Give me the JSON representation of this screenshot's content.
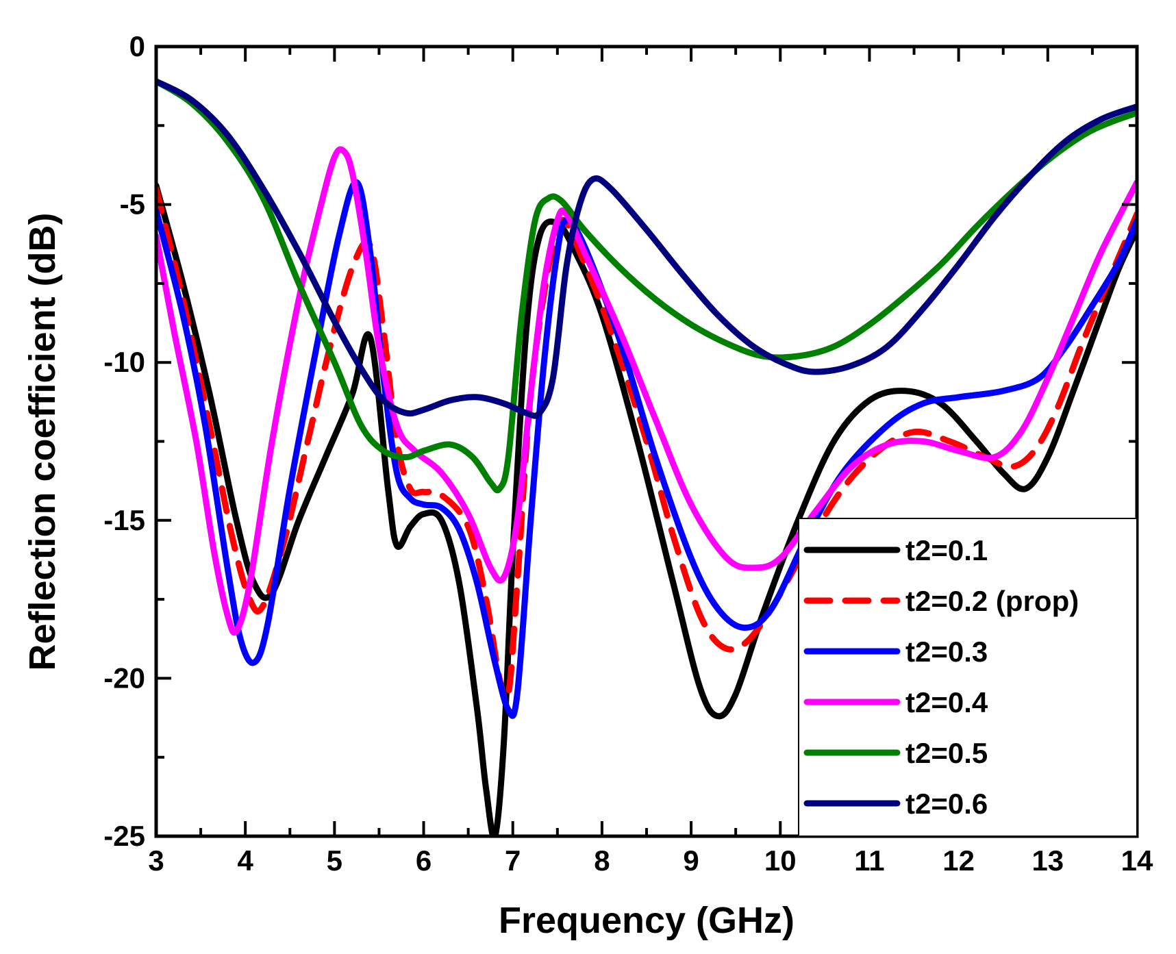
{
  "chart_data": {
    "type": "line",
    "title": "",
    "xlabel": "Frequency (GHz)",
    "ylabel": "Reflection coefficient (dB)",
    "xlim": [
      3,
      14
    ],
    "ylim": [
      -25,
      0
    ],
    "xticks": [
      "3",
      "4",
      "5",
      "6",
      "7",
      "8",
      "9",
      "10",
      "11",
      "12",
      "13",
      "14"
    ],
    "yticks": [
      "0",
      "-5",
      "-10",
      "-15",
      "-20",
      "-25"
    ],
    "xtick_values": [
      3,
      4,
      5,
      6,
      7,
      8,
      9,
      10,
      11,
      12,
      13,
      14
    ],
    "ytick_values": [
      0,
      -5,
      -10,
      -15,
      -20,
      -25
    ],
    "grid": false,
    "legend_position": "lower-right",
    "series": [
      {
        "name": "t2=0.1",
        "color": "#000000",
        "dash": "solid",
        "points": [
          [
            3,
            -4.4
          ],
          [
            3.3,
            -7.5
          ],
          [
            3.6,
            -11
          ],
          [
            3.9,
            -15
          ],
          [
            4.1,
            -17
          ],
          [
            4.3,
            -17.3
          ],
          [
            4.6,
            -15
          ],
          [
            4.9,
            -13
          ],
          [
            5.2,
            -11
          ],
          [
            5.4,
            -9.2
          ],
          [
            5.6,
            -14
          ],
          [
            5.7,
            -15.8
          ],
          [
            5.85,
            -15.2
          ],
          [
            6.0,
            -14.8
          ],
          [
            6.2,
            -15
          ],
          [
            6.4,
            -17
          ],
          [
            6.6,
            -21
          ],
          [
            6.7,
            -23.5
          ],
          [
            6.8,
            -25
          ],
          [
            6.9,
            -22
          ],
          [
            7.0,
            -16
          ],
          [
            7.15,
            -9
          ],
          [
            7.3,
            -6
          ],
          [
            7.5,
            -5.6
          ],
          [
            7.7,
            -6.5
          ],
          [
            8.0,
            -8.5
          ],
          [
            8.4,
            -12.5
          ],
          [
            8.8,
            -17
          ],
          [
            9.1,
            -20.3
          ],
          [
            9.3,
            -21.2
          ],
          [
            9.5,
            -20.5
          ],
          [
            9.8,
            -18
          ],
          [
            10.2,
            -15
          ],
          [
            10.6,
            -12.5
          ],
          [
            11.0,
            -11.2
          ],
          [
            11.4,
            -10.9
          ],
          [
            11.8,
            -11.3
          ],
          [
            12.2,
            -12.5
          ],
          [
            12.5,
            -13.5
          ],
          [
            12.75,
            -14
          ],
          [
            13.0,
            -13
          ],
          [
            13.3,
            -10.8
          ],
          [
            13.6,
            -8.5
          ],
          [
            13.8,
            -7
          ],
          [
            14,
            -5.8
          ]
        ]
      },
      {
        "name": "t2=0.2 (prop)",
        "color": "#ff0000",
        "dash": "dash",
        "points": [
          [
            3,
            -4.5
          ],
          [
            3.3,
            -8
          ],
          [
            3.6,
            -12
          ],
          [
            3.85,
            -15.5
          ],
          [
            4.05,
            -17.5
          ],
          [
            4.2,
            -17.7
          ],
          [
            4.45,
            -15.5
          ],
          [
            4.7,
            -12.5
          ],
          [
            4.95,
            -9.5
          ],
          [
            5.2,
            -7
          ],
          [
            5.4,
            -6.3
          ],
          [
            5.55,
            -9
          ],
          [
            5.7,
            -12.5
          ],
          [
            5.85,
            -14
          ],
          [
            6.0,
            -14.1
          ],
          [
            6.2,
            -14.2
          ],
          [
            6.5,
            -15.2
          ],
          [
            6.7,
            -17.5
          ],
          [
            6.85,
            -20
          ],
          [
            6.95,
            -20.5
          ],
          [
            7.05,
            -17
          ],
          [
            7.2,
            -11
          ],
          [
            7.4,
            -7
          ],
          [
            7.55,
            -5.5
          ],
          [
            7.75,
            -6.5
          ],
          [
            8.1,
            -9
          ],
          [
            8.5,
            -12.5
          ],
          [
            8.8,
            -15.5
          ],
          [
            9.1,
            -18
          ],
          [
            9.35,
            -19
          ],
          [
            9.6,
            -18.9
          ],
          [
            9.9,
            -17.8
          ],
          [
            10.3,
            -15.8
          ],
          [
            10.7,
            -14
          ],
          [
            11.1,
            -12.8
          ],
          [
            11.5,
            -12.2
          ],
          [
            11.9,
            -12.5
          ],
          [
            12.3,
            -13
          ],
          [
            12.6,
            -13.3
          ],
          [
            12.85,
            -12.8
          ],
          [
            13.1,
            -11.5
          ],
          [
            13.4,
            -9.3
          ],
          [
            13.7,
            -7.3
          ],
          [
            14,
            -5.3
          ]
        ]
      },
      {
        "name": "t2=0.3",
        "color": "#0000ff",
        "dash": "solid",
        "points": [
          [
            3,
            -5.2
          ],
          [
            3.3,
            -8.5
          ],
          [
            3.55,
            -12
          ],
          [
            3.8,
            -16.5
          ],
          [
            3.95,
            -18.8
          ],
          [
            4.1,
            -19.5
          ],
          [
            4.25,
            -18.3
          ],
          [
            4.5,
            -14
          ],
          [
            4.8,
            -9.5
          ],
          [
            5.05,
            -6
          ],
          [
            5.25,
            -4.3
          ],
          [
            5.4,
            -6.5
          ],
          [
            5.55,
            -10.5
          ],
          [
            5.7,
            -13.5
          ],
          [
            5.85,
            -14.3
          ],
          [
            6.0,
            -14.5
          ],
          [
            6.2,
            -14.6
          ],
          [
            6.4,
            -15.3
          ],
          [
            6.6,
            -17
          ],
          [
            6.8,
            -19.5
          ],
          [
            6.95,
            -21
          ],
          [
            7.05,
            -20.5
          ],
          [
            7.2,
            -15
          ],
          [
            7.35,
            -10
          ],
          [
            7.5,
            -6.5
          ],
          [
            7.6,
            -5.5
          ],
          [
            7.8,
            -6.3
          ],
          [
            8.2,
            -9.3
          ],
          [
            8.6,
            -13
          ],
          [
            9.0,
            -16.2
          ],
          [
            9.3,
            -17.8
          ],
          [
            9.6,
            -18.4
          ],
          [
            9.9,
            -17.8
          ],
          [
            10.3,
            -15.5
          ],
          [
            10.7,
            -13.5
          ],
          [
            11.2,
            -12
          ],
          [
            11.6,
            -11.3
          ],
          [
            12.0,
            -11.1
          ],
          [
            12.5,
            -10.9
          ],
          [
            12.9,
            -10.5
          ],
          [
            13.2,
            -9.5
          ],
          [
            13.5,
            -8.2
          ],
          [
            13.8,
            -6.8
          ],
          [
            14,
            -5.5
          ]
        ]
      },
      {
        "name": "t2=0.4",
        "color": "#ff00ff",
        "dash": "solid",
        "points": [
          [
            3,
            -6
          ],
          [
            3.2,
            -9
          ],
          [
            3.45,
            -12.5
          ],
          [
            3.65,
            -16
          ],
          [
            3.8,
            -18
          ],
          [
            3.9,
            -18.5
          ],
          [
            4.05,
            -17
          ],
          [
            4.3,
            -12.5
          ],
          [
            4.6,
            -8
          ],
          [
            4.85,
            -5
          ],
          [
            5.0,
            -3.5
          ],
          [
            5.1,
            -3.3
          ],
          [
            5.2,
            -4
          ],
          [
            5.35,
            -6.5
          ],
          [
            5.5,
            -9.5
          ],
          [
            5.7,
            -12
          ],
          [
            5.9,
            -12.8
          ],
          [
            6.2,
            -13.5
          ],
          [
            6.5,
            -14.8
          ],
          [
            6.75,
            -16.5
          ],
          [
            6.9,
            -16.8
          ],
          [
            7.05,
            -15
          ],
          [
            7.2,
            -11
          ],
          [
            7.35,
            -7.5
          ],
          [
            7.5,
            -5.5
          ],
          [
            7.6,
            -5.3
          ],
          [
            7.8,
            -6.5
          ],
          [
            8.2,
            -9
          ],
          [
            8.6,
            -11.8
          ],
          [
            9.0,
            -14.5
          ],
          [
            9.4,
            -16.2
          ],
          [
            9.7,
            -16.5
          ],
          [
            10.0,
            -16.2
          ],
          [
            10.4,
            -14.7
          ],
          [
            10.8,
            -13.3
          ],
          [
            11.2,
            -12.6
          ],
          [
            11.6,
            -12.5
          ],
          [
            12.0,
            -12.8
          ],
          [
            12.4,
            -13
          ],
          [
            12.7,
            -12.2
          ],
          [
            13.0,
            -10.5
          ],
          [
            13.3,
            -8.5
          ],
          [
            13.6,
            -6.5
          ],
          [
            14,
            -4.3
          ]
        ]
      },
      {
        "name": "t2=0.5",
        "color": "#008000",
        "dash": "solid",
        "points": [
          [
            3,
            -1.1
          ],
          [
            3.4,
            -1.8
          ],
          [
            3.8,
            -3
          ],
          [
            4.2,
            -4.8
          ],
          [
            4.6,
            -7.5
          ],
          [
            5.0,
            -10
          ],
          [
            5.3,
            -12
          ],
          [
            5.55,
            -12.8
          ],
          [
            5.8,
            -13
          ],
          [
            6.0,
            -12.8
          ],
          [
            6.3,
            -12.6
          ],
          [
            6.55,
            -13
          ],
          [
            6.75,
            -13.8
          ],
          [
            6.85,
            -14
          ],
          [
            6.95,
            -13
          ],
          [
            7.1,
            -8.5
          ],
          [
            7.25,
            -5.5
          ],
          [
            7.4,
            -4.8
          ],
          [
            7.55,
            -4.9
          ],
          [
            7.8,
            -5.8
          ],
          [
            8.2,
            -7
          ],
          [
            8.6,
            -8
          ],
          [
            9.0,
            -8.8
          ],
          [
            9.4,
            -9.4
          ],
          [
            9.8,
            -9.8
          ],
          [
            10.2,
            -9.8
          ],
          [
            10.6,
            -9.5
          ],
          [
            11.0,
            -8.8
          ],
          [
            11.4,
            -7.9
          ],
          [
            11.8,
            -6.9
          ],
          [
            12.2,
            -5.7
          ],
          [
            12.6,
            -4.6
          ],
          [
            13.0,
            -3.6
          ],
          [
            13.4,
            -2.8
          ],
          [
            13.7,
            -2.4
          ],
          [
            14,
            -2.1
          ]
        ]
      },
      {
        "name": "t2=0.6",
        "color": "#00007f",
        "dash": "solid",
        "points": [
          [
            3,
            -1.1
          ],
          [
            3.4,
            -1.7
          ],
          [
            3.8,
            -2.8
          ],
          [
            4.2,
            -4.5
          ],
          [
            4.6,
            -6.5
          ],
          [
            5.0,
            -8.7
          ],
          [
            5.3,
            -10.2
          ],
          [
            5.55,
            -11.2
          ],
          [
            5.8,
            -11.6
          ],
          [
            6.0,
            -11.5
          ],
          [
            6.3,
            -11.2
          ],
          [
            6.6,
            -11.1
          ],
          [
            6.9,
            -11.3
          ],
          [
            7.15,
            -11.6
          ],
          [
            7.3,
            -11.6
          ],
          [
            7.45,
            -10.5
          ],
          [
            7.6,
            -7
          ],
          [
            7.75,
            -5
          ],
          [
            7.9,
            -4.2
          ],
          [
            8.1,
            -4.5
          ],
          [
            8.5,
            -5.8
          ],
          [
            8.9,
            -7.2
          ],
          [
            9.3,
            -8.5
          ],
          [
            9.7,
            -9.5
          ],
          [
            10.1,
            -10.1
          ],
          [
            10.4,
            -10.3
          ],
          [
            10.8,
            -10.1
          ],
          [
            11.2,
            -9.5
          ],
          [
            11.6,
            -8.3
          ],
          [
            12.0,
            -6.9
          ],
          [
            12.4,
            -5.4
          ],
          [
            12.8,
            -4.1
          ],
          [
            13.2,
            -3
          ],
          [
            13.6,
            -2.3
          ],
          [
            14,
            -1.9
          ]
        ]
      }
    ]
  }
}
